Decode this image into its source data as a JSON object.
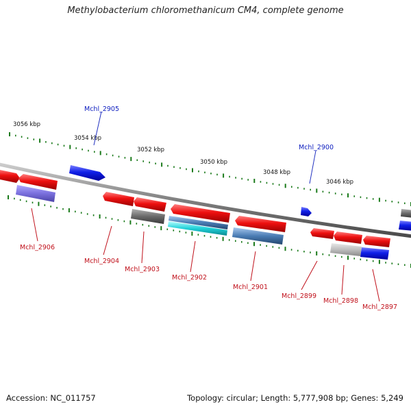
{
  "title": "Methylobacterium chloromethanicum CM4, complete genome",
  "footer": {
    "accession": "Accession: NC_011757",
    "summary": "Topology: circular; Length: 5,777,908 bp; Genes: 5,249"
  },
  "colors": {
    "forward_gene": "#e8101a",
    "reverse_gene": "#1020e0",
    "tick": "#1a7a1a",
    "backbone": "#808080",
    "label_forward": "#c0101a",
    "label_reverse": "#1020c0"
  },
  "scale_labels": [
    "3056 kbp",
    "3054 kbp",
    "3052 kbp",
    "3050 kbp",
    "3048 kbp",
    "3046 kbp"
  ],
  "genes": [
    {
      "label": "Mchl_2906",
      "strand": "forward"
    },
    {
      "label": "Mchl_2905",
      "strand": "reverse"
    },
    {
      "label": "Mchl_2904",
      "strand": "forward"
    },
    {
      "label": "Mchl_2903",
      "strand": "forward"
    },
    {
      "label": "Mchl_2902",
      "strand": "forward"
    },
    {
      "label": "Mchl_2901",
      "strand": "forward"
    },
    {
      "label": "Mchl_2900",
      "strand": "reverse"
    },
    {
      "label": "Mchl_2899",
      "strand": "forward"
    },
    {
      "label": "Mchl_2898",
      "strand": "forward"
    },
    {
      "label": "Mchl_2897",
      "strand": "forward"
    }
  ]
}
